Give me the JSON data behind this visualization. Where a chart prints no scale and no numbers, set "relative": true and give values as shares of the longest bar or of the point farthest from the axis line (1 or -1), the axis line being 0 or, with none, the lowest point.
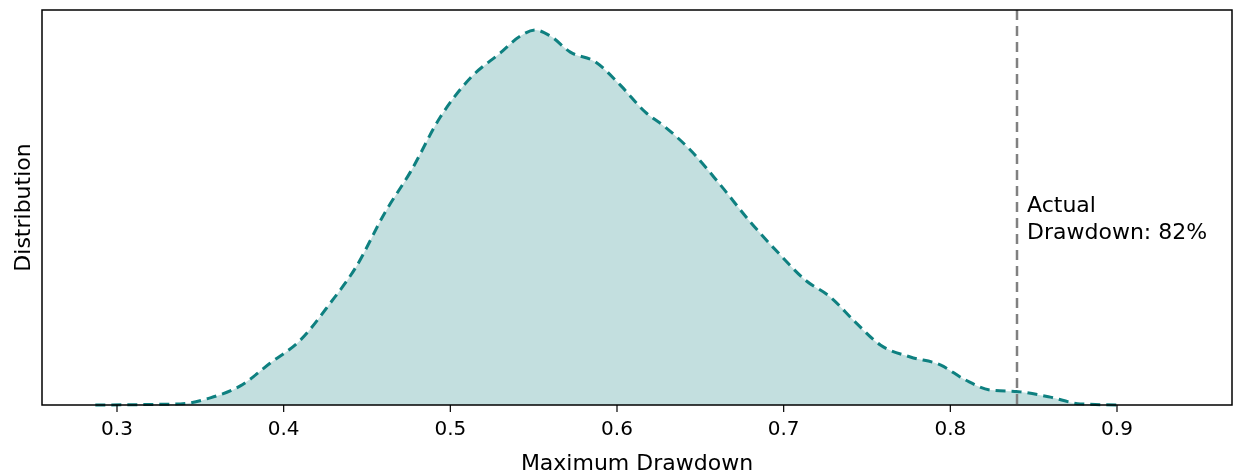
{
  "chart_data": {
    "type": "area",
    "xlabel": "Maximum Drawdown",
    "ylabel": "Distribution",
    "relative": true,
    "xlim": [
      0.255,
      0.969
    ],
    "xticks": [
      {
        "value": 0.3,
        "label": "0.3"
      },
      {
        "value": 0.4,
        "label": "0.4"
      },
      {
        "value": 0.5,
        "label": "0.5"
      },
      {
        "value": 0.6,
        "label": "0.6"
      },
      {
        "value": 0.7,
        "label": "0.7"
      },
      {
        "value": 0.8,
        "label": "0.8"
      },
      {
        "value": 0.9,
        "label": "0.9"
      }
    ],
    "grid": false,
    "marker": "none",
    "line_style": "dashed",
    "series": [
      {
        "color": "#0e8080",
        "x": [
          0.287,
          0.338,
          0.356,
          0.374,
          0.392,
          0.41,
          0.428,
          0.443,
          0.461,
          0.476,
          0.494,
          0.512,
          0.53,
          0.542,
          0.551,
          0.56,
          0.572,
          0.587,
          0.602,
          0.617,
          0.629,
          0.644,
          0.662,
          0.68,
          0.698,
          0.713,
          0.728,
          0.743,
          0.758,
          0.776,
          0.794,
          0.809,
          0.824,
          0.842,
          0.86,
          0.878,
          0.902
        ],
        "values": [
          0,
          0.003,
          0.019,
          0.051,
          0.112,
          0.173,
          0.272,
          0.365,
          0.515,
          0.621,
          0.768,
          0.872,
          0.939,
          0.984,
          1,
          0.984,
          0.941,
          0.915,
          0.853,
          0.781,
          0.741,
          0.68,
          0.587,
          0.488,
          0.4,
          0.333,
          0.288,
          0.221,
          0.16,
          0.128,
          0.107,
          0.067,
          0.04,
          0.035,
          0.021,
          0.003,
          0
        ]
      }
    ],
    "ref_lines": [
      {
        "axis": "x",
        "value": 0.84,
        "color": "#808080",
        "line_style": "dashed"
      }
    ],
    "annotations": [
      "Actual\nDrawdown: 82%"
    ]
  }
}
